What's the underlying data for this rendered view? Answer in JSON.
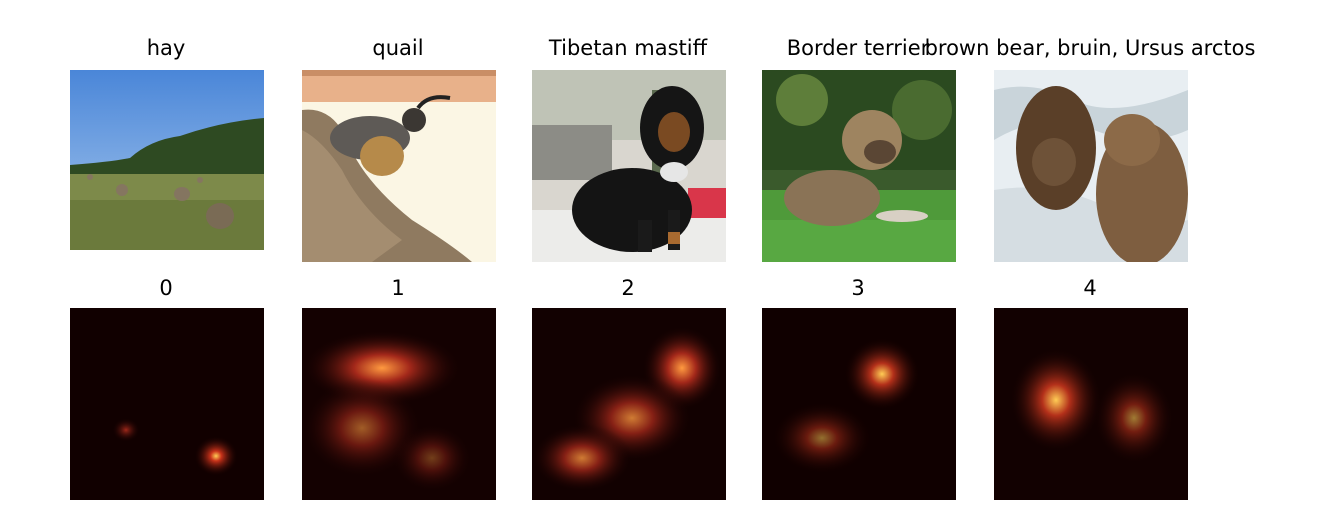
{
  "figure": {
    "top_row": [
      {
        "title": "hay",
        "subject": "hay-field"
      },
      {
        "title": "quail",
        "subject": "quail"
      },
      {
        "title": "Tibetan mastiff",
        "subject": "tibetan-mastiff"
      },
      {
        "title": "Border terrier",
        "subject": "border-terrier"
      },
      {
        "title": "brown bear, bruin, Ursus arctos",
        "subject": "brown-bears"
      }
    ],
    "bottom_row": [
      {
        "title": "0"
      },
      {
        "title": "1"
      },
      {
        "title": "2"
      },
      {
        "title": "3"
      },
      {
        "title": "4"
      }
    ],
    "colors": {
      "heatmap_background": "#110000",
      "heatmap_hot": "#ffcc55",
      "heatmap_mid": "#c8321a"
    }
  }
}
